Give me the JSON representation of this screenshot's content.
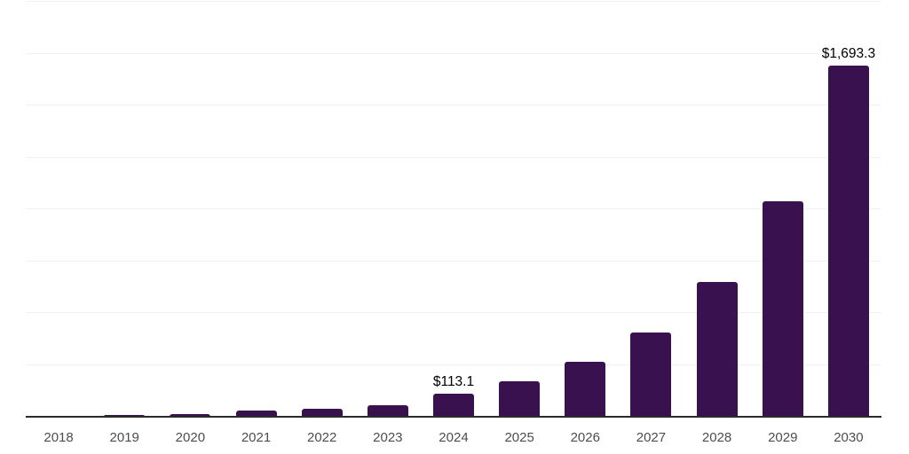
{
  "chart_data": {
    "type": "bar",
    "title": "",
    "xlabel": "",
    "ylabel": "",
    "categories": [
      "2018",
      "2019",
      "2020",
      "2021",
      "2022",
      "2023",
      "2024",
      "2025",
      "2026",
      "2027",
      "2028",
      "2029",
      "2030"
    ],
    "values": [
      3,
      10,
      11,
      28,
      38,
      56,
      113.1,
      170,
      264,
      405,
      648,
      1040,
      1693.3
    ],
    "data_labels": {
      "2024": "$113.1",
      "2030": "$1,693.3"
    },
    "ylim": [
      0,
      2000
    ],
    "gridline_step": 250,
    "grid": true,
    "legend": false,
    "y_axis_labels_visible": false,
    "colors": {
      "bar": "#38114e",
      "gridline": "#f2f2f2",
      "axis_line": "#2b2b2b",
      "tick_label": "#4d4d4d",
      "data_label": "#000000",
      "background": "#ffffff"
    }
  }
}
